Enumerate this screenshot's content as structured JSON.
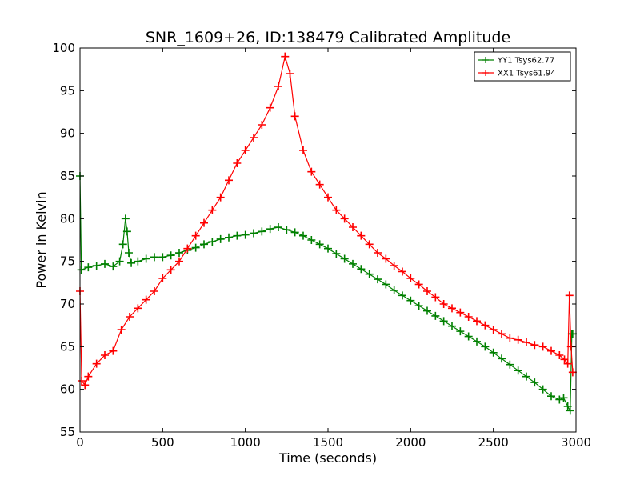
{
  "chart_data": {
    "type": "line",
    "title": "SNR_1609+26, ID:138479 Calibrated Amplitude",
    "xlabel": "Time (seconds)",
    "ylabel": "Power in Kelvin",
    "xlim": [
      0,
      3000
    ],
    "ylim": [
      55,
      100
    ],
    "xticks": [
      0,
      500,
      1000,
      1500,
      2000,
      2500,
      3000
    ],
    "yticks": [
      55,
      60,
      65,
      70,
      75,
      80,
      85,
      90,
      95,
      100
    ],
    "grid": false,
    "legend_position": "top-right",
    "marker": "+",
    "series": [
      {
        "name": "YY1 Tsys62.77",
        "color": "#008000",
        "x": [
          0,
          8,
          50,
          100,
          150,
          200,
          240,
          260,
          275,
          285,
          295,
          310,
          350,
          400,
          450,
          500,
          550,
          600,
          650,
          700,
          750,
          800,
          850,
          900,
          950,
          1000,
          1050,
          1100,
          1150,
          1200,
          1250,
          1300,
          1350,
          1400,
          1450,
          1500,
          1550,
          1600,
          1650,
          1700,
          1750,
          1800,
          1850,
          1900,
          1950,
          2000,
          2050,
          2100,
          2150,
          2200,
          2250,
          2300,
          2350,
          2400,
          2450,
          2500,
          2550,
          2600,
          2650,
          2700,
          2750,
          2800,
          2850,
          2900,
          2925,
          2950,
          2965,
          2975,
          2980
        ],
        "y": [
          85,
          74,
          74.3,
          74.5,
          74.7,
          74.4,
          75,
          77,
          80,
          78.5,
          76,
          74.8,
          75,
          75.3,
          75.5,
          75.5,
          75.7,
          76,
          76.3,
          76.6,
          77,
          77.3,
          77.6,
          77.8,
          78,
          78.1,
          78.3,
          78.5,
          78.8,
          79,
          78.7,
          78.4,
          78,
          77.5,
          77,
          76.5,
          75.9,
          75.3,
          74.7,
          74.1,
          73.5,
          72.9,
          72.3,
          71.6,
          71,
          70.4,
          69.8,
          69.2,
          68.6,
          68,
          67.4,
          66.8,
          66.2,
          65.6,
          65,
          64.3,
          63.6,
          62.9,
          62.2,
          61.5,
          60.8,
          60,
          59.2,
          58.8,
          59,
          58,
          57.5,
          66.5,
          66.5
        ]
      },
      {
        "name": "XX1 Tsys61.94",
        "color": "#ff0000",
        "x": [
          0,
          10,
          30,
          50,
          100,
          150,
          200,
          250,
          300,
          350,
          400,
          450,
          500,
          550,
          600,
          650,
          700,
          750,
          800,
          850,
          900,
          950,
          1000,
          1050,
          1100,
          1150,
          1200,
          1240,
          1270,
          1300,
          1350,
          1400,
          1450,
          1500,
          1550,
          1600,
          1650,
          1700,
          1750,
          1800,
          1850,
          1900,
          1950,
          2000,
          2050,
          2100,
          2150,
          2200,
          2250,
          2300,
          2350,
          2400,
          2450,
          2500,
          2550,
          2600,
          2650,
          2700,
          2750,
          2800,
          2850,
          2900,
          2930,
          2950,
          2960,
          2970,
          2980
        ],
        "y": [
          71.5,
          61,
          60.5,
          61.5,
          63,
          64,
          64.5,
          67,
          68.5,
          69.5,
          70.5,
          71.5,
          73,
          74,
          75,
          76.5,
          78,
          79.5,
          81,
          82.5,
          84.5,
          86.5,
          88,
          89.5,
          91,
          93,
          95.5,
          99,
          97,
          92,
          88,
          85.5,
          84,
          82.5,
          81,
          80,
          79,
          78,
          77,
          76,
          75.3,
          74.5,
          73.8,
          73,
          72.3,
          71.5,
          70.8,
          70,
          69.5,
          69,
          68.5,
          68,
          67.5,
          67,
          66.5,
          66,
          65.8,
          65.5,
          65.2,
          65,
          64.5,
          64,
          63.5,
          63,
          71,
          65,
          62
        ]
      }
    ]
  }
}
